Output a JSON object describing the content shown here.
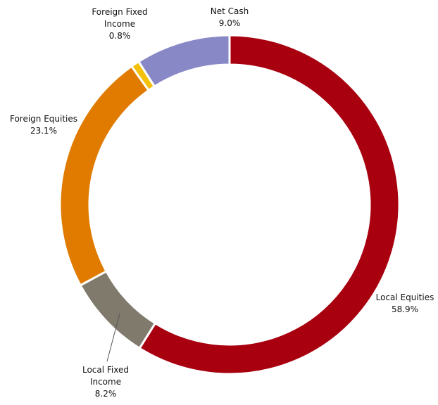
{
  "chart_data": {
    "type": "donut",
    "categories": [
      "Local Equities",
      "Local Fixed Income",
      "Foreign Equities",
      "Foreign Fixed Income",
      "Net Cash"
    ],
    "values": [
      58.9,
      8.2,
      23.1,
      0.8,
      9.0
    ],
    "value_labels": [
      "58.9%",
      "8.2%",
      "23.1%",
      "0.8%",
      "9.0%"
    ],
    "colors": [
      "#a8000f",
      "#7f7a6c",
      "#e07b00",
      "#f4c20d",
      "#8988c6"
    ]
  }
}
